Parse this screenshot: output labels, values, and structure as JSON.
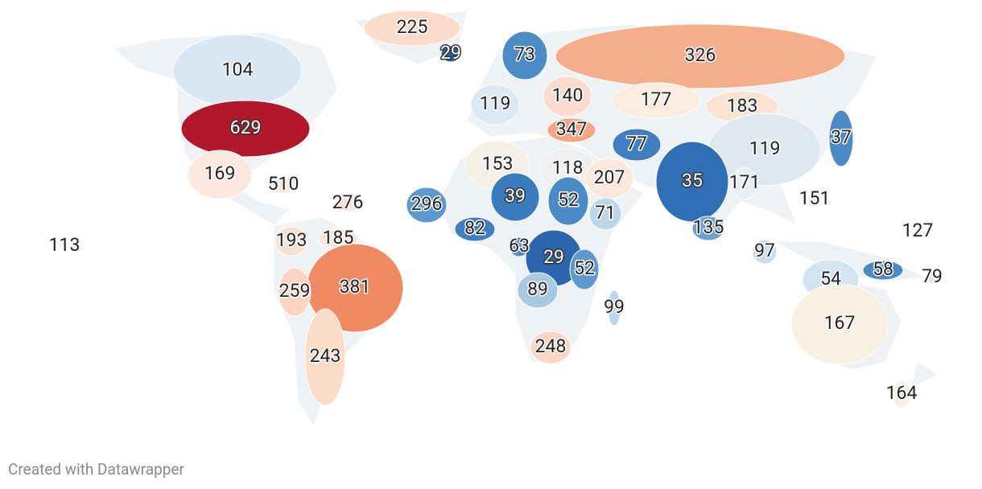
{
  "map": {
    "regions": [
      {
        "value": 225,
        "color": "#fbdccb"
      },
      {
        "value": 29,
        "color": "#2166ac"
      },
      {
        "value": 73,
        "color": "#4b8bc6"
      },
      {
        "value": 326,
        "color": "#f5ae8c"
      },
      {
        "value": 104,
        "color": "#d9e7f3"
      },
      {
        "value": 119,
        "color": "#dce9f3"
      },
      {
        "value": 140,
        "color": "#f9dccd"
      },
      {
        "value": 177,
        "color": "#fbece0"
      },
      {
        "value": 183,
        "color": "#fbe3d3"
      },
      {
        "value": 629,
        "color": "#b2182b"
      },
      {
        "value": 347,
        "color": "#f4a582"
      },
      {
        "value": 77,
        "color": "#3f7fc0"
      },
      {
        "value": 37,
        "color": "#4a8ac6"
      },
      {
        "value": 119,
        "color": "#dde9ee"
      },
      {
        "value": 169,
        "color": "#fbe9e0"
      },
      {
        "value": 153,
        "color": "#f4f0e6"
      },
      {
        "value": 118,
        "color": "#eef0f0"
      },
      {
        "value": 207,
        "color": "#fbe8dd"
      },
      {
        "value": 35,
        "color": "#2f6fb5"
      },
      {
        "value": 171,
        "color": "#e8eef2"
      },
      {
        "value": 510,
        "color": "#fbe7dd"
      },
      {
        "value": 276,
        "color": "#fbe3d6"
      },
      {
        "value": 151,
        "color": "#f5f0e8"
      },
      {
        "value": 296,
        "color": "#5b99cf"
      },
      {
        "value": 39,
        "color": "#3a7bbd"
      },
      {
        "value": 52,
        "color": "#4a8ac6"
      },
      {
        "value": 71,
        "color": "#bcd6ea"
      },
      {
        "value": 82,
        "color": "#3f7fc0"
      },
      {
        "value": 135,
        "color": "#6aa3d3"
      },
      {
        "value": 127,
        "color": "#f7f1ea"
      },
      {
        "value": 113,
        "color": "#f2f4f6"
      },
      {
        "value": 193,
        "color": "#fbdfd0"
      },
      {
        "value": 185,
        "color": "#fbe4d8"
      },
      {
        "value": 63,
        "color": "#4a8ac6"
      },
      {
        "value": 29,
        "color": "#2a65ae"
      },
      {
        "value": 97,
        "color": "#c9dff0"
      },
      {
        "value": 52,
        "color": "#5b99cf"
      },
      {
        "value": 58,
        "color": "#4a8ac6"
      },
      {
        "value": 79,
        "color": "#d9e7f3"
      },
      {
        "value": 54,
        "color": "#d3e4f1"
      },
      {
        "value": 381,
        "color": "#ef8a62"
      },
      {
        "value": 259,
        "color": "#fbd5c2"
      },
      {
        "value": 89,
        "color": "#a8c9e4"
      },
      {
        "value": 99,
        "color": "#bcd6ea"
      },
      {
        "value": 167,
        "color": "#f7f0e3"
      },
      {
        "value": 248,
        "color": "#fbd5c2"
      },
      {
        "value": 243,
        "color": "#fbdcc9"
      },
      {
        "value": 164,
        "color": "#f7f0e6"
      }
    ]
  },
  "footer": "Created with Datawrapper"
}
